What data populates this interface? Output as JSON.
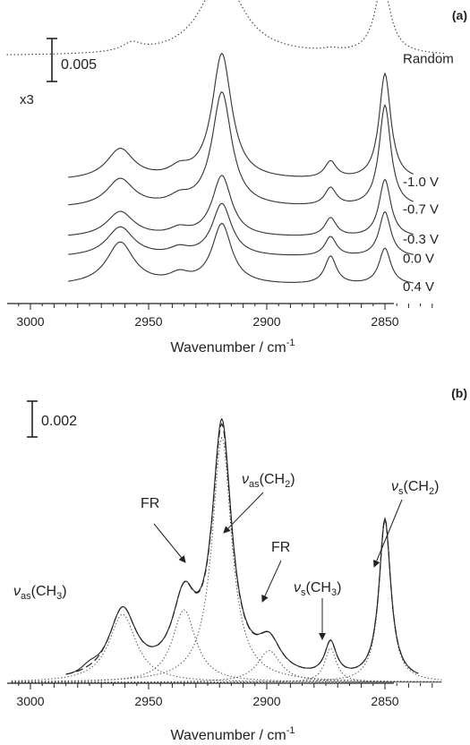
{
  "chart_data": [
    {
      "panel": "(a)",
      "type": "line",
      "xlabel": "Wavenumber / cm",
      "xlabel_sup": "-1",
      "xlim": [
        3010,
        2825
      ],
      "xticks": [
        3000,
        2950,
        2900,
        2850
      ],
      "x_reversed": true,
      "scale_bar": {
        "label": "0.005",
        "value": 0.005
      },
      "annotations": [
        "x3"
      ],
      "series": [
        {
          "name": "Random",
          "style": "dotted",
          "offset": 0.027,
          "scale_note": "x3",
          "peaks": [
            {
              "x": 2957,
              "y": 0.001,
              "w": 5
            },
            {
              "x": 2919,
              "y": 0.0092,
              "w": 11
            },
            {
              "x": 2873,
              "y": 0.0003,
              "w": 4
            },
            {
              "x": 2851,
              "y": 0.0083,
              "w": 4
            }
          ],
          "xrange": [
            3010,
            2825
          ]
        },
        {
          "name": "-1.0 V",
          "style": "solid",
          "offset": 0.0123,
          "peaks": [
            {
              "x": 2962,
              "y": 0.0036,
              "w": 7
            },
            {
              "x": 2937,
              "y": 0.001,
              "w": 5
            },
            {
              "x": 2919,
              "y": 0.0148,
              "w": 5
            },
            {
              "x": 2873,
              "y": 0.002,
              "w": 3
            },
            {
              "x": 2850,
              "y": 0.0125,
              "w": 3
            }
          ],
          "xrange": [
            2984,
            2838
          ]
        },
        {
          "name": "-0.7 V",
          "style": "solid",
          "offset": 0.0091,
          "peaks": [
            {
              "x": 2962,
              "y": 0.0033,
              "w": 7
            },
            {
              "x": 2937,
              "y": 0.0009,
              "w": 5
            },
            {
              "x": 2919,
              "y": 0.0135,
              "w": 5
            },
            {
              "x": 2873,
              "y": 0.0021,
              "w": 3
            },
            {
              "x": 2850,
              "y": 0.012,
              "w": 3
            }
          ],
          "xrange": [
            2984,
            2838
          ]
        },
        {
          "name": "-0.3 V",
          "style": "solid",
          "offset": 0.0056,
          "peaks": [
            {
              "x": 2962,
              "y": 0.003,
              "w": 7
            },
            {
              "x": 2937,
              "y": 0.0008,
              "w": 5
            },
            {
              "x": 2919,
              "y": 0.0072,
              "w": 5
            },
            {
              "x": 2873,
              "y": 0.0022,
              "w": 3
            },
            {
              "x": 2850,
              "y": 0.0068,
              "w": 3
            }
          ],
          "xrange": [
            2984,
            2838
          ]
        },
        {
          "name": "0.0 V",
          "style": "solid",
          "offset": 0.0033,
          "peaks": [
            {
              "x": 2962,
              "y": 0.0035,
              "w": 7
            },
            {
              "x": 2937,
              "y": 0.0008,
              "w": 5
            },
            {
              "x": 2919,
              "y": 0.0062,
              "w": 5
            },
            {
              "x": 2873,
              "y": 0.0023,
              "w": 3
            },
            {
              "x": 2850,
              "y": 0.0053,
              "w": 3
            }
          ],
          "xrange": [
            2984,
            2838
          ]
        },
        {
          "name": "0.4 V",
          "style": "solid",
          "offset": 0.0,
          "peaks": [
            {
              "x": 2962,
              "y": 0.005,
              "w": 7
            },
            {
              "x": 2937,
              "y": 0.001,
              "w": 5
            },
            {
              "x": 2919,
              "y": 0.0071,
              "w": 5
            },
            {
              "x": 2873,
              "y": 0.0033,
              "w": 3
            },
            {
              "x": 2850,
              "y": 0.0043,
              "w": 3
            }
          ],
          "xrange": [
            2984,
            2838
          ]
        }
      ]
    },
    {
      "panel": "(b)",
      "type": "line",
      "xlabel": "Wavenumber / cm",
      "xlabel_sup": "-1",
      "xlim": [
        3010,
        2825
      ],
      "xticks": [
        3000,
        2950,
        2900,
        2850
      ],
      "x_reversed": true,
      "scale_bar": {
        "label": "0.002",
        "value": 0.002
      },
      "components": [
        {
          "name": "vas(CH3)",
          "x": 2961,
          "y": 0.003,
          "w": 7
        },
        {
          "name": "FR",
          "x": 2935,
          "y": 0.0032,
          "w": 6
        },
        {
          "name": "vas(CH2)",
          "x": 2919,
          "y": 0.0108,
          "w": 5
        },
        {
          "name": "FR",
          "x": 2899,
          "y": 0.0014,
          "w": 6
        },
        {
          "name": "vs(CH3)",
          "x": 2873,
          "y": 0.0015,
          "w": 3
        },
        {
          "name": "vs(CH2)",
          "x": 2850,
          "y": 0.0071,
          "w": 3
        }
      ],
      "series": [
        {
          "name": "",
          "style": "solid",
          "role": "measured",
          "xrange": [
            2985,
            2836
          ]
        },
        {
          "name": "",
          "style": "dashed",
          "role": "fit",
          "xrange": [
            2985,
            2836
          ]
        }
      ],
      "annotations": [
        {
          "main": "ν",
          "sub": "as",
          "group": "(CH",
          "group_sub": "3",
          "close": ")"
        },
        {
          "main": "FR"
        },
        {
          "main": "ν",
          "sub": "as",
          "group": "(CH",
          "group_sub": "2",
          "close": ")"
        },
        {
          "main": "FR"
        },
        {
          "main": "ν",
          "sub": "s",
          "group": "(CH",
          "group_sub": "3",
          "close": ")"
        },
        {
          "main": "ν",
          "sub": "s",
          "group": "(CH",
          "group_sub": "2",
          "close": ")"
        }
      ]
    }
  ]
}
